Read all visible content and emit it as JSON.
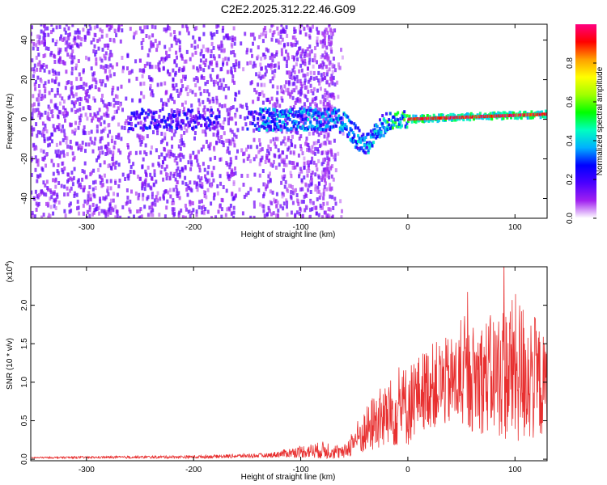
{
  "figure_title": "C2E2.2025.312.22.46.G09",
  "colors": {
    "rainbow": [
      "#ffffff",
      "#a020f0",
      "#4b00ff",
      "#0000ff",
      "#00b0ff",
      "#00ffc0",
      "#00ff00",
      "#a0ff00",
      "#ffff00",
      "#ffa000",
      "#ff0000",
      "#ff0080"
    ],
    "snr_line": "#e83030",
    "axis": "#000000"
  },
  "chart_data": [
    {
      "type": "heatmap",
      "title": "C2E2.2025.312.22.46.G09",
      "xlabel": "Height of straight line (km)",
      "ylabel": "Frequency (Hz)",
      "xlim": [
        -352,
        130
      ],
      "ylim": [
        -50,
        48
      ],
      "xticks": [
        -300,
        -200,
        -100,
        0,
        100
      ],
      "xticklabels": [
        "-300",
        "-200",
        "-100",
        "0",
        "100"
      ],
      "yticks": [
        -40,
        -20,
        0,
        20,
        40
      ],
      "yticklabels": [
        "-40",
        "-20",
        "0",
        "20",
        "40"
      ],
      "colorbar": {
        "label": "Normalized spectral amplitude",
        "range": [
          0,
          1
        ],
        "ticks": [
          0.0,
          0.2,
          0.4,
          0.6,
          0.8
        ],
        "ticklabels": [
          "0.0",
          "0.2",
          "0.4",
          "0.6",
          "0.8"
        ]
      },
      "features": {
        "noise_region_x": [
          -352,
          -75
        ],
        "band_center_hz": 0,
        "band_dip_center_x": -40,
        "band_dip_min_hz": -12,
        "band_dip_width_km": 30,
        "band_halfwidth_hz": 4,
        "high_amplitude_from_x": 0,
        "band_slope_hz_per_km": 0.02,
        "vertical_streak_x": -75
      }
    },
    {
      "type": "line",
      "xlabel": "Height of straight line (km)",
      "ylabel": "SNR (10 * v/v)",
      "scale_label": "(x10",
      "scale_exponent": "4",
      "xlim": [
        -352,
        130
      ],
      "ylim": [
        -0.02,
        2.5
      ],
      "xticks": [
        -300,
        -200,
        -100,
        0,
        100
      ],
      "xticklabels": [
        "-300",
        "-200",
        "-100",
        "0",
        "100"
      ],
      "yticks": [
        0.0,
        0.5,
        1.0,
        1.5,
        2.0
      ],
      "yticklabels": [
        "0.0",
        "0.5",
        "1.0",
        "1.5",
        "2.0"
      ],
      "series": [
        {
          "name": "SNR",
          "envelope_x": [
            -352,
            -200,
            -130,
            -100,
            -75,
            -60,
            -50,
            -40,
            -30,
            -20,
            -10,
            0,
            10,
            20,
            40,
            60,
            80,
            100,
            115,
            130
          ],
          "envelope_mean": [
            0.02,
            0.03,
            0.05,
            0.1,
            0.12,
            0.08,
            0.25,
            0.35,
            0.5,
            0.55,
            0.65,
            0.7,
            0.85,
            0.95,
            1.0,
            1.05,
            1.1,
            1.15,
            1.1,
            0.9
          ],
          "envelope_spread": [
            0.01,
            0.02,
            0.03,
            0.08,
            0.12,
            0.08,
            0.2,
            0.3,
            0.4,
            0.45,
            0.5,
            0.55,
            0.5,
            0.55,
            0.6,
            0.7,
            0.8,
            1.0,
            0.9,
            0.6
          ]
        }
      ]
    }
  ]
}
